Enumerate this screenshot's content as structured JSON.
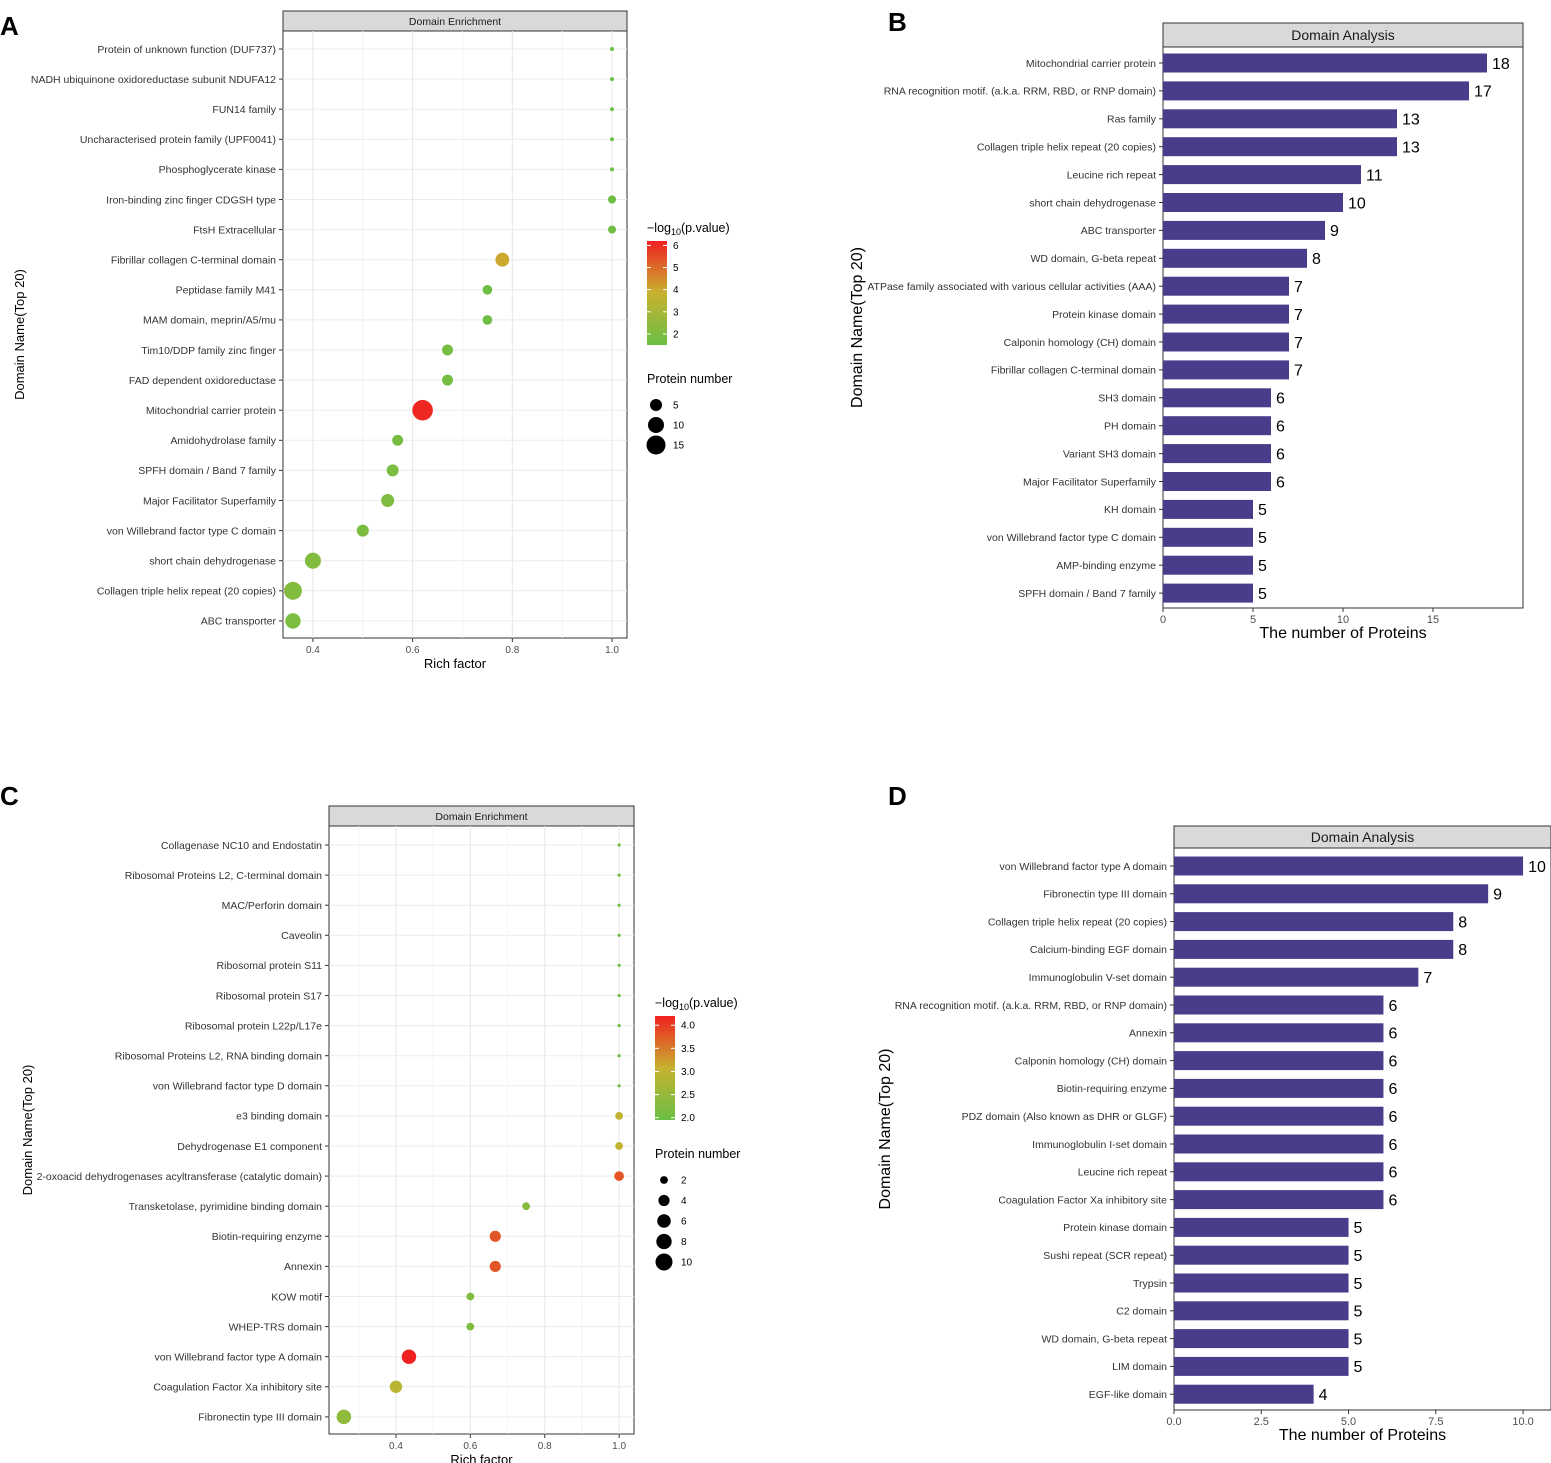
{
  "chart_data": [
    {
      "panel": "A",
      "type": "scatter",
      "title": "Domain Enrichment",
      "xlabel": "Rich factor",
      "ylabel": "Domain Name(Top 20)",
      "xlim": [
        0.34,
        1.03
      ],
      "xticks": [
        0.4,
        0.6,
        0.8,
        1.0
      ],
      "xtick_labels": [
        "0.4",
        "0.6",
        "0.8",
        "1.0"
      ],
      "grid": true,
      "categories": [
        "Protein of unknown function (DUF737)",
        "NADH ubiquinone oxidoreductase subunit NDUFA12",
        "FUN14 family",
        "Uncharacterised protein family (UPF0041)",
        "Phosphoglycerate kinase",
        "Iron-binding zinc finger CDGSH type",
        "FtsH Extracellular",
        "Fibrillar collagen C-terminal domain",
        "Peptidase family M41",
        "MAM domain, meprin/A5/mu",
        "Tim10/DDP family zinc finger",
        "FAD dependent oxidoreductase",
        "Mitochondrial carrier protein",
        "Amidohydrolase family",
        "SPFH domain / Band 7 family",
        "Major Facilitator Superfamily",
        "von Willebrand factor type C domain",
        "short chain dehydrogenase",
        "Collagen triple helix repeat (20 copies)",
        "ABC transporter"
      ],
      "x": [
        1.0,
        1.0,
        1.0,
        1.0,
        1.0,
        1.0,
        1.0,
        0.78,
        0.75,
        0.75,
        0.67,
        0.67,
        0.62,
        0.57,
        0.56,
        0.55,
        0.5,
        0.4,
        0.36,
        0.36
      ],
      "size": [
        1,
        1,
        1,
        1,
        1,
        2,
        2,
        7,
        3,
        3,
        4,
        4,
        18,
        4,
        5,
        6,
        5,
        10,
        13,
        9
      ],
      "color": [
        1.5,
        1.5,
        1.5,
        1.5,
        1.5,
        1.6,
        1.6,
        4.0,
        1.6,
        1.6,
        1.8,
        1.8,
        6.1,
        1.8,
        1.9,
        2.0,
        1.9,
        2.1,
        2.1,
        1.9
      ],
      "color_legend": {
        "title_prefix": "−log",
        "title_sub": "10",
        "title_suffix": "(p.value)",
        "min": 1.5,
        "max": 6.2,
        "ticks": [
          2,
          3,
          4,
          5,
          6
        ],
        "tick_labels": [
          "2",
          "3",
          "4",
          "5",
          "6"
        ],
        "low_color": "#6abf45",
        "mid_color": "#c7b22f",
        "high_color": "#f02121"
      },
      "size_legend": {
        "title": "Protein number",
        "values": [
          5,
          10,
          15
        ],
        "labels": [
          "5",
          "10",
          "15"
        ]
      }
    },
    {
      "panel": "B",
      "type": "bar",
      "title": "Domain Analysis",
      "xlabel": "The number of Proteins",
      "ylabel": "Domain Name(Top 20)",
      "xlim": [
        0,
        20
      ],
      "xticks": [
        0,
        5,
        10,
        15
      ],
      "xtick_labels": [
        "0",
        "5",
        "10",
        "15"
      ],
      "bar_color": "#483d8b",
      "categories": [
        "Mitochondrial carrier protein",
        "RNA recognition motif. (a.k.a. RRM, RBD, or RNP domain)",
        "Ras family",
        "Collagen triple helix repeat (20 copies)",
        "Leucine rich repeat",
        "short chain dehydrogenase",
        "ABC transporter",
        "WD domain, G-beta repeat",
        "ATPase family associated with various cellular activities (AAA)",
        "Protein kinase domain",
        "Calponin homology (CH) domain",
        "Fibrillar collagen C-terminal domain",
        "SH3 domain",
        "PH domain",
        "Variant SH3 domain",
        "Major Facilitator Superfamily",
        "KH domain",
        "von Willebrand factor type C domain",
        "AMP-binding enzyme",
        "SPFH domain / Band 7 family"
      ],
      "values": [
        18,
        17,
        13,
        13,
        11,
        10,
        9,
        8,
        7,
        7,
        7,
        7,
        6,
        6,
        6,
        6,
        5,
        5,
        5,
        5
      ],
      "value_labels": [
        "18",
        "17",
        "13",
        "13",
        "11",
        "10",
        "9",
        "8",
        "7",
        "7",
        "7",
        "7",
        "6",
        "6",
        "6",
        "6",
        "5",
        "5",
        "5",
        "5"
      ]
    },
    {
      "panel": "C",
      "type": "scatter",
      "title": "Domain Enrichment",
      "xlabel": "Rich factor",
      "ylabel": "Domain Name(Top 20)",
      "xlim": [
        0.22,
        1.04
      ],
      "xticks": [
        0.4,
        0.6,
        0.8,
        1.0
      ],
      "xtick_labels": [
        "0.4",
        "0.6",
        "0.8",
        "1.0"
      ],
      "grid": true,
      "categories": [
        "Collagenase NC10 and Endostatin",
        "Ribosomal Proteins L2, C-terminal domain",
        "MAC/Perforin domain",
        "Caveolin",
        "Ribosomal protein S11",
        "Ribosomal protein S17",
        "Ribosomal protein L22p/L17e",
        "Ribosomal Proteins L2, RNA binding domain",
        "von Willebrand factor type D domain",
        "e3 binding domain",
        "Dehydrogenase E1 component",
        "2-oxoacid dehydrogenases acyltransferase (catalytic domain)",
        "Transketolase, pyrimidine binding domain",
        "Biotin-requiring enzyme",
        "Annexin",
        "KOW motif",
        "WHEP-TRS domain",
        "von Willebrand factor type A domain",
        "Coagulation Factor Xa inhibitory site",
        "Fibronectin type III domain"
      ],
      "x": [
        1.0,
        1.0,
        1.0,
        1.0,
        1.0,
        1.0,
        1.0,
        1.0,
        1.0,
        1.0,
        1.0,
        1.0,
        0.75,
        0.667,
        0.667,
        0.6,
        0.6,
        0.435,
        0.4,
        0.26
      ],
      "size": [
        1,
        1,
        1,
        1,
        1,
        1,
        1,
        1,
        1,
        2,
        2,
        3,
        2,
        4,
        4,
        2,
        2,
        7,
        5,
        7
      ],
      "color": [
        2.0,
        2.0,
        2.0,
        2.0,
        2.0,
        2.0,
        2.0,
        2.0,
        2.0,
        3.0,
        3.0,
        3.8,
        2.3,
        3.8,
        3.8,
        2.2,
        2.2,
        4.2,
        2.9,
        2.4
      ],
      "color_legend": {
        "title_prefix": "−log",
        "title_sub": "10",
        "title_suffix": "(p.value)",
        "min": 1.95,
        "max": 4.2,
        "ticks": [
          2.0,
          2.5,
          3.0,
          3.5,
          4.0
        ],
        "tick_labels": [
          "2.0",
          "2.5",
          "3.0",
          "3.5",
          "4.0"
        ],
        "low_color": "#6abf45",
        "mid_color": "#c7b22f",
        "high_color": "#f02121"
      },
      "size_legend": {
        "title": "Protein number",
        "values": [
          2,
          4,
          6,
          8,
          10
        ],
        "labels": [
          "2",
          "4",
          "6",
          "8",
          "10"
        ]
      }
    },
    {
      "panel": "D",
      "type": "bar",
      "title": "Domain Analysis",
      "xlabel": "The number of Proteins",
      "ylabel": "Domain Name(Top 20)",
      "xlim": [
        0,
        10.8
      ],
      "xticks": [
        0.0,
        2.5,
        5.0,
        7.5,
        10.0
      ],
      "xtick_labels": [
        "0.0",
        "2.5",
        "5.0",
        "7.5",
        "10.0"
      ],
      "bar_color": "#483d8b",
      "categories": [
        "von Willebrand factor type A domain",
        "Fibronectin type III domain",
        "Collagen triple helix repeat (20 copies)",
        "Calcium-binding EGF domain",
        "Immunoglobulin V-set domain",
        "RNA recognition motif. (a.k.a. RRM, RBD, or RNP domain)",
        "Annexin",
        "Calponin homology (CH) domain",
        "Biotin-requiring enzyme",
        "PDZ domain (Also known as DHR or GLGF)",
        "Immunoglobulin I-set domain",
        "Leucine rich repeat",
        "Coagulation Factor Xa inhibitory site",
        "Protein kinase domain",
        "Sushi repeat (SCR repeat)",
        "Trypsin",
        "C2 domain",
        "WD domain, G-beta repeat",
        "LIM domain",
        "EGF-like domain"
      ],
      "values": [
        10,
        9,
        8,
        8,
        7,
        6,
        6,
        6,
        6,
        6,
        6,
        6,
        6,
        5,
        5,
        5,
        5,
        5,
        5,
        4
      ],
      "value_labels": [
        "10",
        "9",
        "8",
        "8",
        "7",
        "6",
        "6",
        "6",
        "6",
        "6",
        "6",
        "6",
        "6",
        "5",
        "5",
        "5",
        "5",
        "5",
        "5",
        "4"
      ]
    }
  ]
}
